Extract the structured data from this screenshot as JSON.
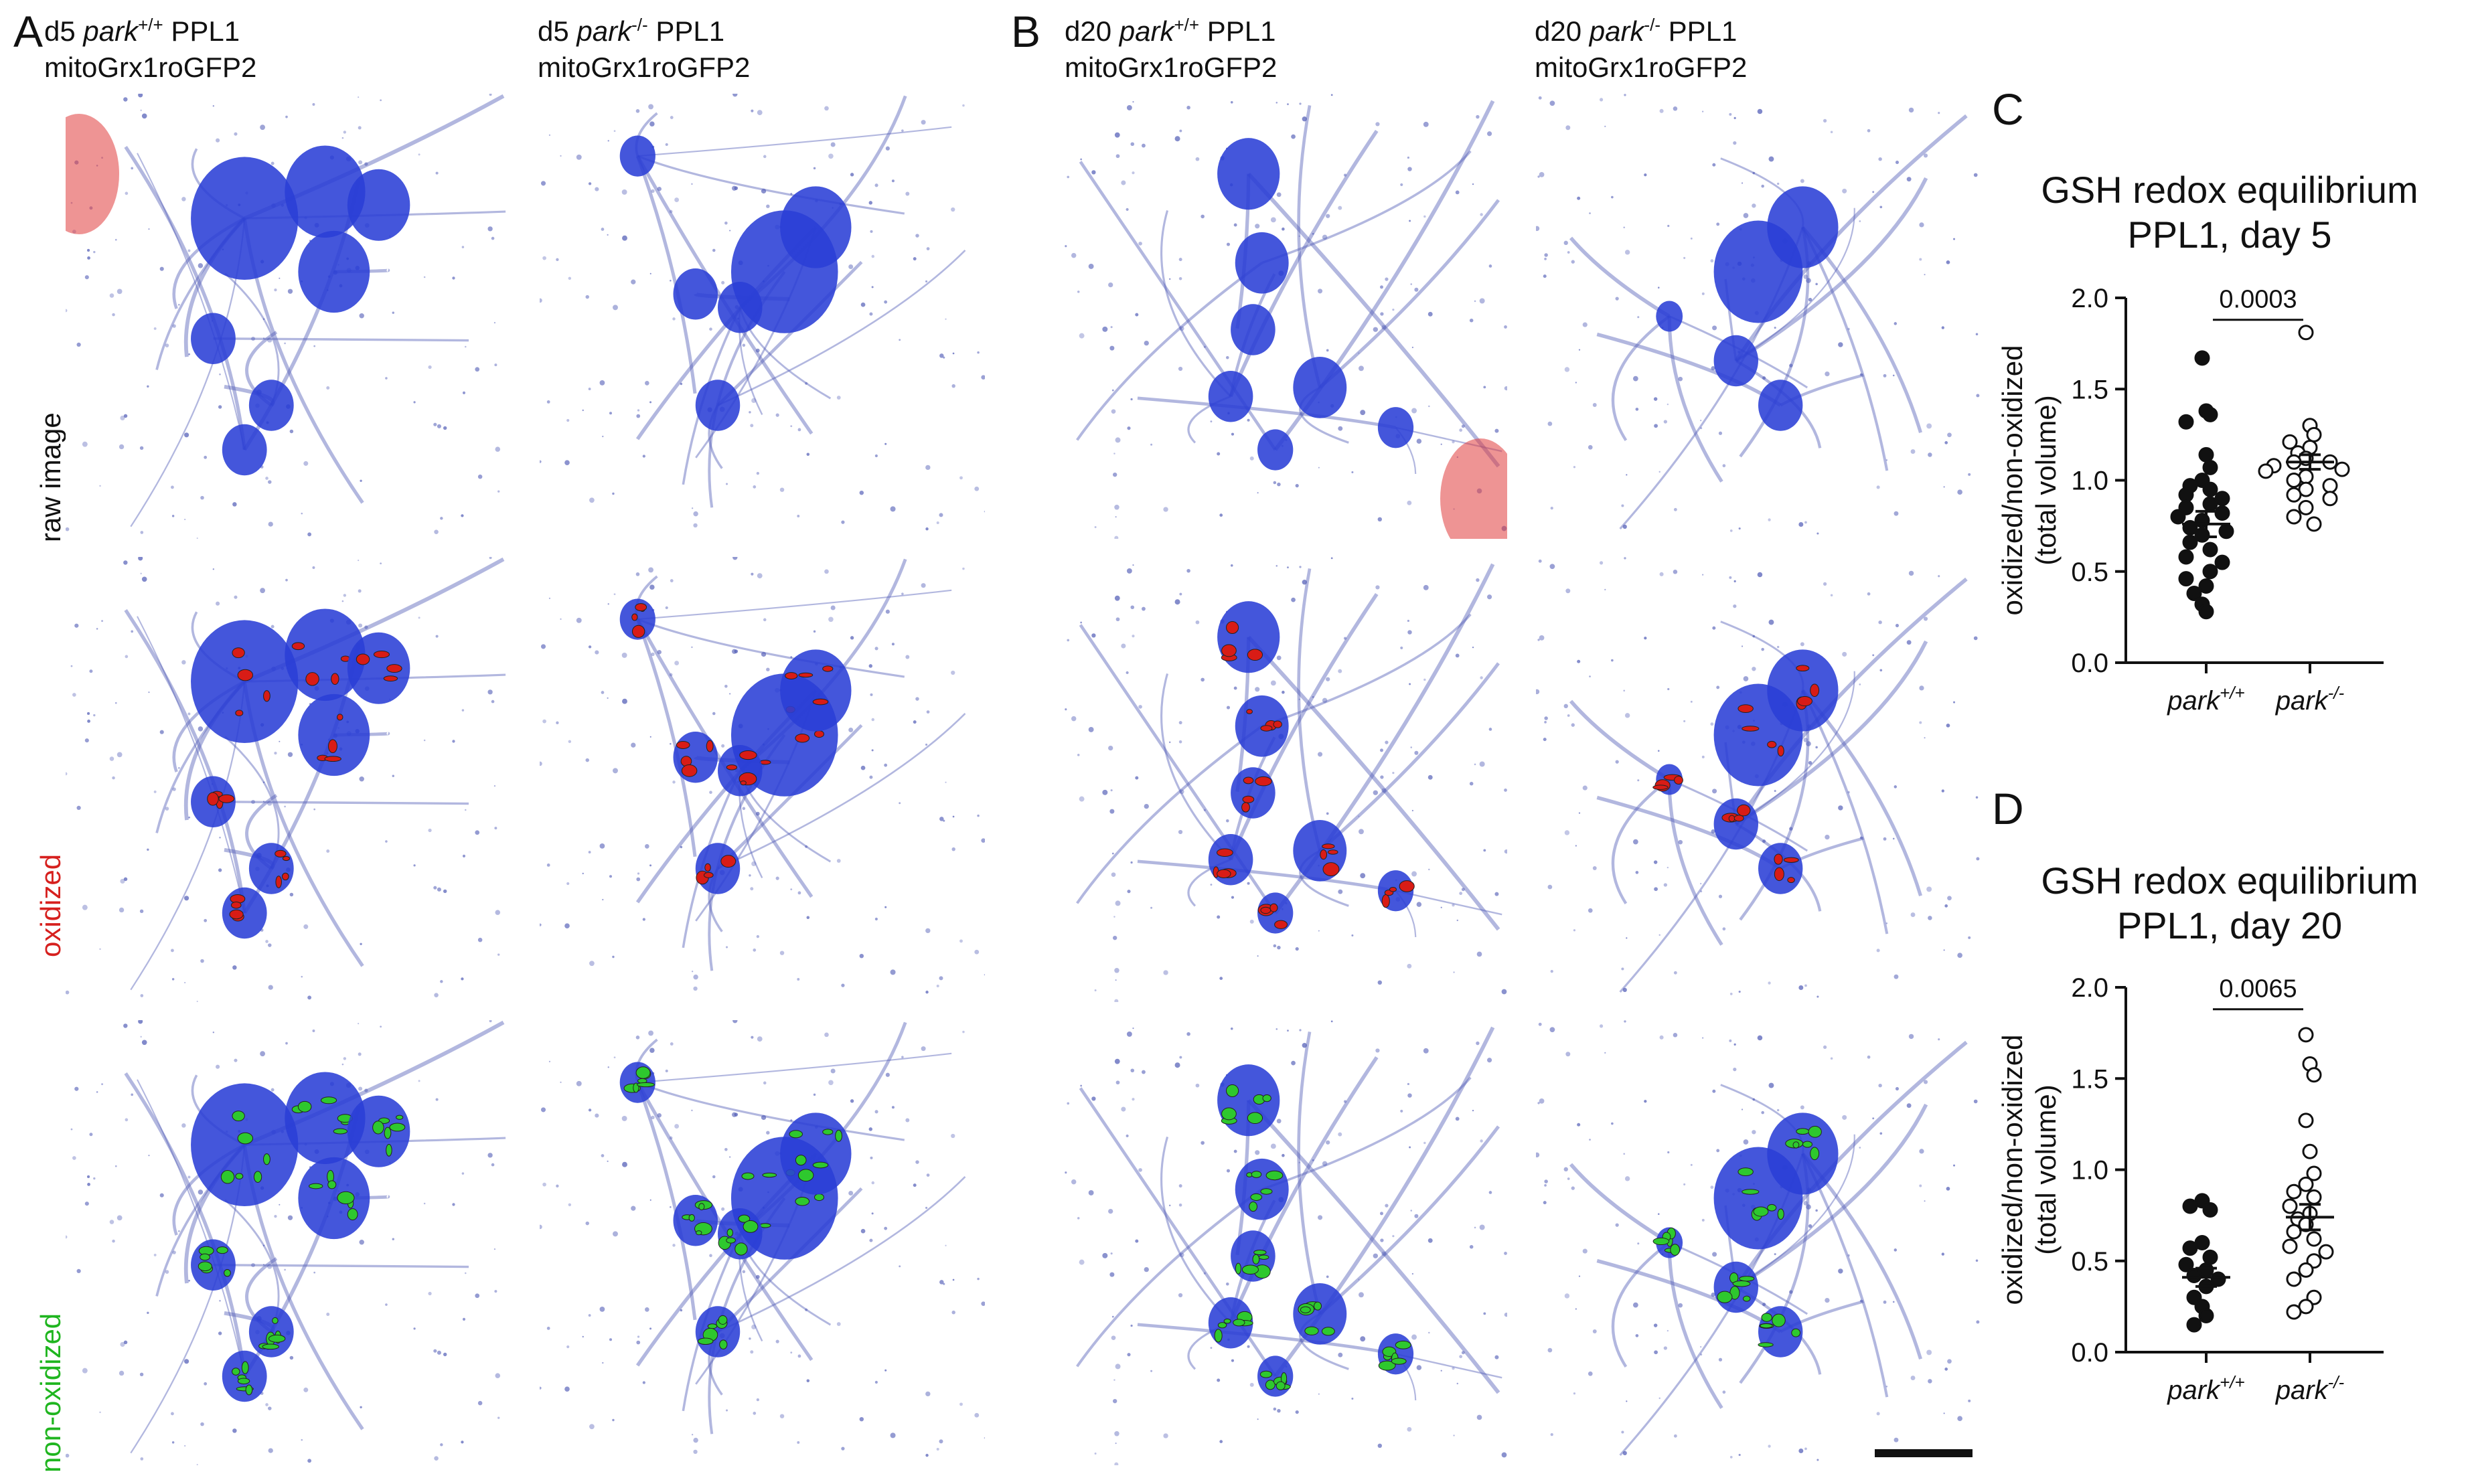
{
  "panels": {
    "A": "A",
    "B": "B",
    "C": "C",
    "D": "D"
  },
  "columns": [
    {
      "day": "d5",
      "genotype": "park",
      "sup": "+/+",
      "region": "PPL1",
      "sensor": "mitoGrx1roGFP2"
    },
    {
      "day": "d5",
      "genotype": "park",
      "sup": "-/-",
      "region": "PPL1",
      "sensor": "mitoGrx1roGFP2"
    },
    {
      "day": "d20",
      "genotype": "park",
      "sup": "+/+",
      "region": "PPL1",
      "sensor": "mitoGrx1roGFP2"
    },
    {
      "day": "d20",
      "genotype": "park",
      "sup": "-/-",
      "region": "PPL1",
      "sensor": "mitoGrx1roGFP2"
    }
  ],
  "rows": [
    {
      "label": "raw image",
      "color": "#111111"
    },
    {
      "label": "oxidized",
      "color": "#d6201e"
    },
    {
      "label": "non-oxidized",
      "color": "#1fb51f"
    }
  ],
  "colors": {
    "neuron": "#2a3fd6",
    "fibers": "#5560b8",
    "oxidized": "#d81c16",
    "non_oxidized": "#2ec82e",
    "trachea": "#e03c3c"
  },
  "chart_data": [
    {
      "type": "scatter",
      "title_line1": "GSH redox equilibrium",
      "title_line2": "PPL1, day 5",
      "ylabel_line1": "oxidized/non-oxidized",
      "ylabel_line2": "(total volume)",
      "ylim": [
        0.0,
        2.0
      ],
      "yticks": [
        "0.0",
        "0.5",
        "1.0",
        "1.5",
        "2.0"
      ],
      "categories": [
        {
          "genotype": "park",
          "sup": "+/+"
        },
        {
          "genotype": "park",
          "sup": "-/-"
        }
      ],
      "p_value": "0.0003",
      "series": [
        {
          "filled": true,
          "mean": 0.76,
          "sem": 0.07,
          "values": [
            1.67,
            1.38,
            1.36,
            1.32,
            1.14,
            1.07,
            1.0,
            0.97,
            0.95,
            0.92,
            0.9,
            0.87,
            0.85,
            0.82,
            0.8,
            0.78,
            0.74,
            0.72,
            0.7,
            0.66,
            0.62,
            0.58,
            0.55,
            0.5,
            0.46,
            0.42,
            0.38,
            0.32,
            0.28
          ]
        },
        {
          "filled": false,
          "mean": 1.1,
          "sem": 0.04,
          "values": [
            1.81,
            1.3,
            1.25,
            1.21,
            1.18,
            1.15,
            1.12,
            1.1,
            1.1,
            1.08,
            1.06,
            1.05,
            1.02,
            1.0,
            0.97,
            0.95,
            0.92,
            0.9,
            0.85,
            0.8,
            0.76
          ]
        }
      ]
    },
    {
      "type": "scatter",
      "title_line1": "GSH redox equilibrium",
      "title_line2": "PPL1, day 20",
      "ylabel_line1": "oxidized/non-oxidized",
      "ylabel_line2": "(total volume)",
      "ylim": [
        0.0,
        2.0
      ],
      "yticks": [
        "0.0",
        "0.5",
        "1.0",
        "1.5",
        "2.0"
      ],
      "categories": [
        {
          "genotype": "park",
          "sup": "+/+"
        },
        {
          "genotype": "park",
          "sup": "-/-"
        }
      ],
      "p_value": "0.0065",
      "series": [
        {
          "filled": true,
          "mean": 0.41,
          "sem": 0.05,
          "values": [
            0.83,
            0.8,
            0.78,
            0.6,
            0.57,
            0.52,
            0.48,
            0.45,
            0.42,
            0.4,
            0.36,
            0.3,
            0.25,
            0.2,
            0.15
          ]
        },
        {
          "filled": false,
          "mean": 0.74,
          "sem": 0.07,
          "values": [
            1.74,
            1.58,
            1.52,
            1.27,
            1.1,
            0.98,
            0.92,
            0.88,
            0.85,
            0.8,
            0.76,
            0.73,
            0.7,
            0.66,
            0.62,
            0.58,
            0.55,
            0.5,
            0.45,
            0.4,
            0.3,
            0.25,
            0.22
          ]
        }
      ]
    }
  ]
}
